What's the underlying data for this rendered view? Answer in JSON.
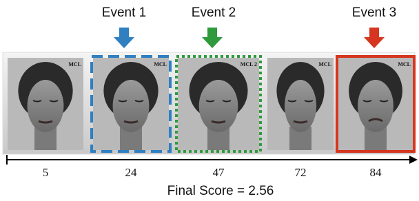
{
  "events": [
    {
      "label": "Event 1"
    },
    {
      "label": "Event 2"
    },
    {
      "label": "Event 3"
    }
  ],
  "frames": [
    {
      "number": 5,
      "watermark": "MCL"
    },
    {
      "number": 24,
      "watermark": "MCL"
    },
    {
      "number": 47,
      "watermark": "MCL 2"
    },
    {
      "number": 72,
      "watermark": "MCL"
    },
    {
      "number": 84,
      "watermark": "MCL"
    }
  ],
  "final_score": "Final Score = 2.56"
}
